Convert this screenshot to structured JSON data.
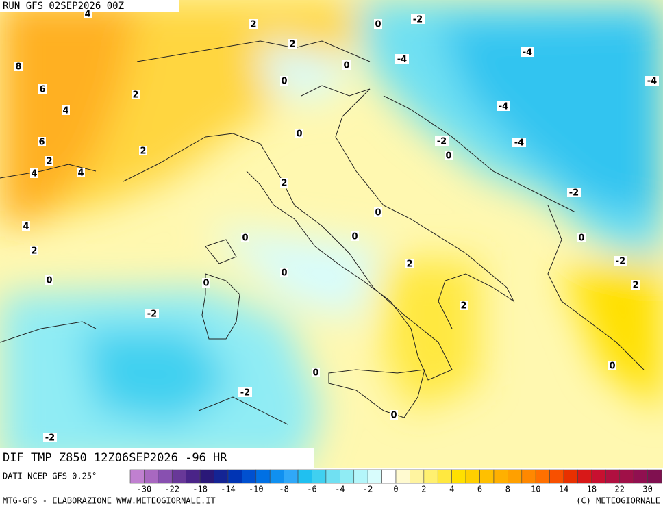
{
  "header": {
    "run": "RUN GFS 02SEP2026 00Z"
  },
  "map": {
    "contour_labels": [
      4,
      2,
      0,
      -2,
      8,
      2,
      -4,
      -4,
      0,
      6,
      2,
      0,
      -4,
      4,
      -4,
      0,
      6,
      2,
      -2,
      -4,
      2,
      0,
      4,
      4,
      2,
      -2,
      0,
      4,
      0,
      0,
      0,
      2,
      2,
      -2,
      0,
      0,
      0,
      2,
      2,
      -2,
      0,
      0,
      -2,
      0,
      -2
    ]
  },
  "footer": {
    "field": "DIF TMP Z850 12Z06SEP2026 -96 HR",
    "source": "DATI NCEP GFS 0.25°",
    "credit": "MTG-GFS - ELABORAZIONE WWW.METEOGIORNALE.IT",
    "copyright": "(C) METEOGIORNALE"
  },
  "legend": {
    "colors": [
      "#c080d0",
      "#a868c0",
      "#8850b0",
      "#683898",
      "#4a2488",
      "#2a1878",
      "#142494",
      "#0034b4",
      "#0050d0",
      "#0070e4",
      "#1090f0",
      "#30a8f8",
      "#20c0f0",
      "#40d0f0",
      "#70e0f2",
      "#90ecf4",
      "#b4f6fa",
      "#d8fcfc",
      "#ffffff",
      "#fffad0",
      "#fff4a0",
      "#fff070",
      "#ffe840",
      "#ffe000",
      "#ffd000",
      "#ffc000",
      "#ffb000",
      "#ffa000",
      "#ff8800",
      "#ff7000",
      "#f85000",
      "#e83000",
      "#d81818",
      "#c81030",
      "#b01040",
      "#a01048",
      "#901050",
      "#801050"
    ],
    "labels": [
      -30,
      -22,
      -18,
      -14,
      -10,
      -8,
      -6,
      -4,
      -2,
      0,
      2,
      4,
      6,
      8,
      10,
      14,
      18,
      22,
      30
    ]
  }
}
